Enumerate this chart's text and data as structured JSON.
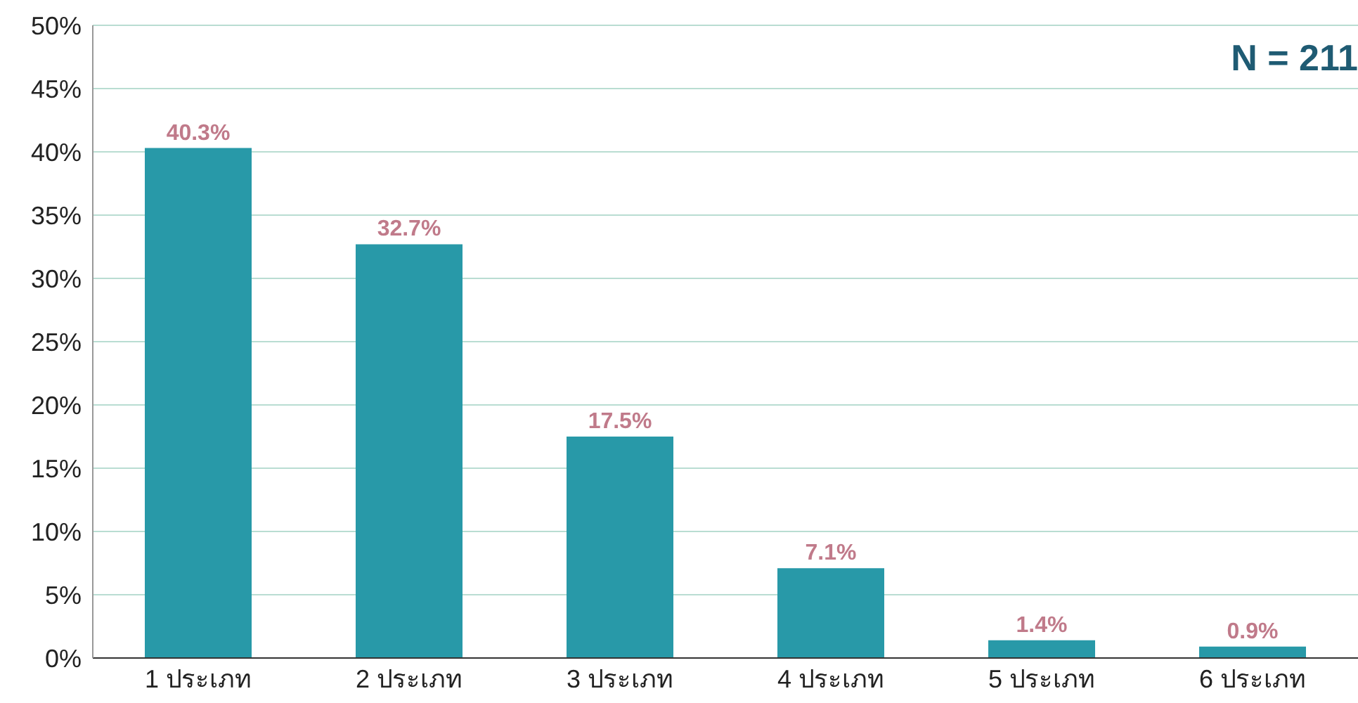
{
  "chart_data": {
    "type": "bar",
    "categories": [
      "1 ประเภท",
      "2 ประเภท",
      "3 ประเภท",
      "4 ประเภท",
      "5 ประเภท",
      "6 ประเภท"
    ],
    "values": [
      40.3,
      32.7,
      17.5,
      7.1,
      1.4,
      0.9
    ],
    "value_labels": [
      "40.3%",
      "32.7%",
      "17.5%",
      "7.1%",
      "1.4%",
      "0.9%"
    ],
    "color": "#2899a8",
    "ylim": [
      0,
      50
    ],
    "yticks": [
      {
        "value": 0,
        "label": "0%"
      },
      {
        "value": 5,
        "label": "5%"
      },
      {
        "value": 10,
        "label": "10%"
      },
      {
        "value": 15,
        "label": "15%"
      },
      {
        "value": 20,
        "label": "20%"
      },
      {
        "value": 25,
        "label": "25%"
      },
      {
        "value": 30,
        "label": "30%"
      },
      {
        "value": 35,
        "label": "35%"
      },
      {
        "value": 40,
        "label": "40%"
      },
      {
        "value": 45,
        "label": "45%"
      },
      {
        "value": 50,
        "label": "50%"
      }
    ],
    "grid": "y",
    "annotations": [
      "N = 211"
    ]
  }
}
